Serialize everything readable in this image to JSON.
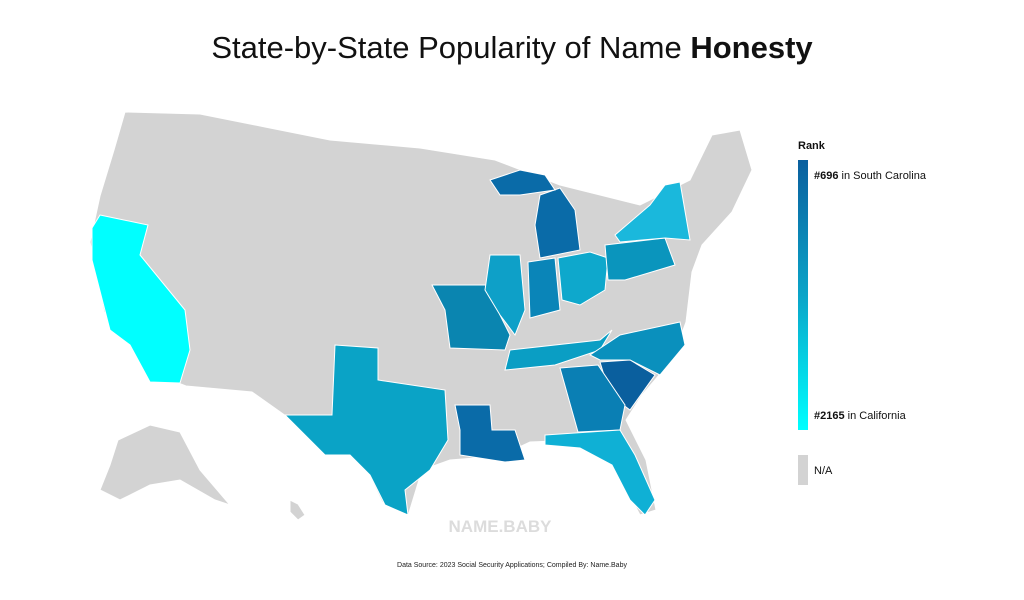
{
  "title": {
    "text": "State-by-State Popularity of Name",
    "name": "Honesty"
  },
  "legend": {
    "title": "Rank",
    "top": {
      "rank": "#696",
      "label": "in South Carolina"
    },
    "bottom": {
      "rank": "#2165",
      "label": "in California"
    },
    "na": "N/A"
  },
  "watermark": "NAME.BABY",
  "footer": "Data Source: 2023 Social Security Applications; Compiled By: Name.Baby"
}
